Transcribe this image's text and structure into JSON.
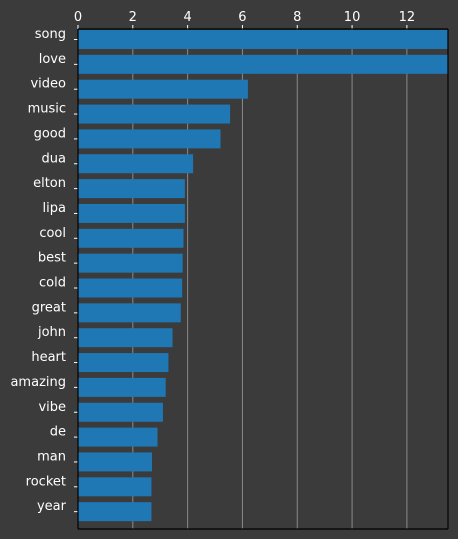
{
  "chart_data": {
    "type": "bar",
    "orientation": "horizontal",
    "categories": [
      "song",
      "love",
      "video",
      "music",
      "good",
      "dua",
      "elton",
      "lipa",
      "cool",
      "best",
      "cold",
      "great",
      "john",
      "heart",
      "amazing",
      "vibe",
      "de",
      "man",
      "rocket",
      "year"
    ],
    "values": [
      13.5,
      13.5,
      6.2,
      5.55,
      5.2,
      4.2,
      3.9,
      3.9,
      3.85,
      3.82,
      3.8,
      3.75,
      3.45,
      3.3,
      3.2,
      3.1,
      2.9,
      2.7,
      2.68,
      2.68
    ],
    "xlim": [
      0,
      13.5
    ],
    "xticks": [
      "0",
      "2",
      "4",
      "6",
      "8",
      "10",
      "12"
    ],
    "x_axis_position": "top",
    "grid": "vertical",
    "title": "",
    "xlabel": "",
    "ylabel": "",
    "colors": {
      "background": "#3b3b3b",
      "bar": "#1f77b4",
      "axis": "#000000",
      "grid": "#8a8a8a",
      "text": "#ffffff"
    }
  }
}
